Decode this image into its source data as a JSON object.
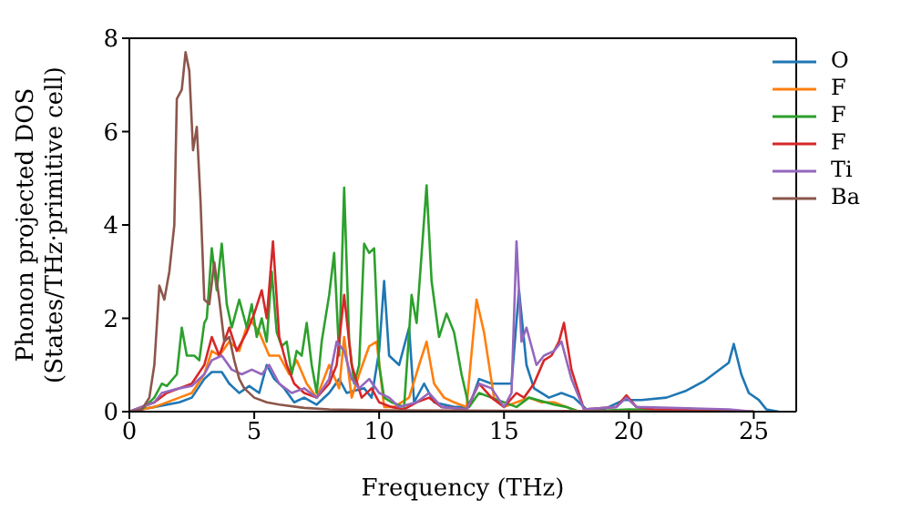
{
  "chart_data": {
    "type": "line",
    "xlabel": "Frequency (THz)",
    "ylabel": "Phonon projected DOS\n(States/THz·primitive cell)",
    "xlim": [
      0,
      26.7
    ],
    "xticks": [
      0,
      5,
      10,
      15,
      20,
      25
    ],
    "ylim": [
      0,
      8
    ],
    "yticks": [
      0,
      2,
      4,
      6,
      8
    ],
    "grid": false,
    "legend": "top right",
    "marker": "none",
    "line_style": "solid",
    "series": [
      {
        "name": "O",
        "color": "#1f77b4",
        "x": [
          0,
          1,
          2,
          2.5,
          3,
          3.3,
          3.7,
          4.0,
          4.4,
          4.8,
          5.2,
          5.5,
          5.8,
          6.2,
          6.6,
          7.0,
          7.5,
          8.0,
          8.4,
          8.7,
          9.0,
          9.4,
          9.7,
          10.0,
          10.2,
          10.4,
          10.8,
          11.2,
          11.4,
          11.8,
          12.2,
          13,
          13.6,
          14,
          14.5,
          15,
          15.3,
          15.6,
          15.9,
          16.2,
          16.8,
          17.3,
          17.8,
          18.3,
          19,
          19.8,
          20.5,
          21.5,
          22.3,
          23,
          23.5,
          24,
          24.2,
          24.5,
          24.8,
          25.2,
          25.5,
          26
        ],
        "values": [
          0,
          0.1,
          0.2,
          0.3,
          0.7,
          0.85,
          0.85,
          0.6,
          0.4,
          0.55,
          0.4,
          1.0,
          0.7,
          0.5,
          0.2,
          0.3,
          0.15,
          0.4,
          0.7,
          0.4,
          0.45,
          0.5,
          0.3,
          1.3,
          2.8,
          1.2,
          1.0,
          1.8,
          0.2,
          0.6,
          0.2,
          0.1,
          0.1,
          0.7,
          0.6,
          0.6,
          0.6,
          2.6,
          1.0,
          0.5,
          0.3,
          0.4,
          0.3,
          0.05,
          0.05,
          0.25,
          0.25,
          0.3,
          0.45,
          0.65,
          0.85,
          1.05,
          1.45,
          0.8,
          0.4,
          0.25,
          0.05,
          0
        ]
      },
      {
        "name": "F",
        "color": "#ff7f0e",
        "x": [
          0,
          1,
          2,
          2.5,
          3,
          3.3,
          3.6,
          4.0,
          4.4,
          4.8,
          5.2,
          5.6,
          6.0,
          6.4,
          6.7,
          7.1,
          7.5,
          8.0,
          8.4,
          8.6,
          8.9,
          9.2,
          9.6,
          9.9,
          10.2,
          10.6,
          11.2,
          11.6,
          11.9,
          12.2,
          12.6,
          13,
          13.5,
          13.9,
          14.2,
          14.6,
          15,
          15.5,
          16,
          16.5,
          17,
          17.5,
          18,
          25
        ],
        "values": [
          0,
          0.1,
          0.3,
          0.4,
          0.8,
          1.3,
          1.2,
          1.5,
          1.3,
          2.0,
          1.7,
          1.2,
          1.2,
          0.8,
          1.1,
          0.6,
          0.3,
          1.0,
          0.5,
          1.6,
          0.3,
          0.8,
          1.4,
          1.5,
          0.1,
          0.1,
          0.3,
          1.0,
          1.5,
          0.6,
          0.3,
          0.2,
          0.1,
          2.4,
          1.7,
          0.3,
          0.1,
          0.2,
          0.3,
          0.2,
          0.2,
          0.1,
          0,
          0
        ]
      },
      {
        "name": "F",
        "color": "#2ca02c",
        "x": [
          0,
          0.5,
          1.0,
          1.3,
          1.5,
          1.9,
          2.1,
          2.3,
          2.6,
          2.8,
          3.0,
          3.1,
          3.3,
          3.5,
          3.7,
          3.9,
          4.1,
          4.4,
          4.7,
          4.9,
          5.1,
          5.3,
          5.5,
          5.7,
          5.9,
          6.1,
          6.3,
          6.5,
          6.7,
          6.9,
          7.1,
          7.3,
          7.5,
          7.7,
          8.0,
          8.2,
          8.4,
          8.6,
          8.8,
          9.0,
          9.2,
          9.4,
          9.6,
          9.8,
          10.0,
          10.2,
          10.5,
          11,
          11.3,
          11.5,
          11.9,
          12.1,
          12.4,
          12.7,
          13.0,
          13.3,
          13.6,
          14,
          14.5,
          15,
          15.5,
          16,
          17,
          17.5,
          18,
          20,
          25
        ],
        "values": [
          0,
          0.05,
          0.3,
          0.6,
          0.55,
          0.8,
          1.8,
          1.2,
          1.2,
          1.1,
          1.9,
          2.0,
          3.5,
          2.6,
          3.6,
          2.3,
          1.8,
          2.4,
          1.8,
          2.3,
          1.6,
          2.0,
          1.5,
          3.0,
          1.7,
          1.4,
          1.5,
          0.8,
          1.3,
          1.2,
          1.9,
          1.0,
          0.4,
          1.5,
          2.5,
          3.4,
          1.2,
          4.8,
          1.5,
          0.6,
          1.0,
          3.6,
          3.4,
          3.5,
          1.0,
          0.3,
          0.2,
          0.1,
          2.5,
          1.9,
          4.85,
          2.8,
          1.6,
          2.1,
          1.7,
          0.8,
          0.1,
          0.4,
          0.3,
          0.2,
          0.1,
          0.3,
          0.15,
          0.1,
          0,
          0.05,
          0
        ]
      },
      {
        "name": "F",
        "color": "#d62728",
        "x": [
          0,
          1,
          1.5,
          2,
          2.5,
          3.0,
          3.3,
          3.6,
          4.0,
          4.3,
          4.7,
          5.0,
          5.3,
          5.5,
          5.75,
          6.0,
          6.3,
          6.6,
          7.0,
          7.5,
          8.0,
          8.3,
          8.6,
          8.9,
          9.3,
          9.7,
          10.0,
          10.5,
          11,
          11.5,
          12,
          12.5,
          13.5,
          14,
          14.5,
          15,
          15.5,
          15.8,
          16.2,
          16.6,
          16.9,
          17.2,
          17.4,
          17.7,
          18.2,
          19.5,
          19.9,
          20.3,
          21,
          25
        ],
        "values": [
          0,
          0.2,
          0.4,
          0.5,
          0.6,
          1.0,
          1.6,
          1.2,
          1.8,
          1.3,
          1.7,
          2.1,
          2.6,
          2.0,
          3.65,
          1.6,
          1.0,
          0.6,
          0.4,
          0.3,
          0.6,
          1.0,
          2.5,
          1.0,
          0.3,
          0.5,
          0.2,
          0.1,
          0.05,
          0.2,
          0.3,
          0.1,
          0.05,
          0.6,
          0.3,
          0.1,
          0.4,
          0.3,
          0.6,
          1.1,
          1.2,
          1.5,
          1.9,
          0.9,
          0.05,
          0.1,
          0.35,
          0.1,
          0.05,
          0
        ]
      },
      {
        "name": "Ti",
        "color": "#9467bd",
        "x": [
          0,
          1,
          1.3,
          2,
          2.5,
          3,
          3.3,
          3.7,
          4.1,
          4.5,
          4.9,
          5.3,
          5.6,
          6,
          6.5,
          7,
          7.5,
          8,
          8.3,
          8.6,
          8.9,
          9.2,
          9.6,
          10.0,
          10.4,
          10.8,
          11.5,
          12,
          12.5,
          13.5,
          14,
          14.5,
          15.0,
          15.3,
          15.5,
          15.7,
          15.9,
          16.3,
          16.6,
          17,
          17.3,
          17.7,
          18.2,
          19.5,
          19.9,
          20.3,
          24,
          25
        ],
        "values": [
          0,
          0.2,
          0.4,
          0.5,
          0.55,
          0.8,
          1.1,
          1.2,
          0.9,
          0.8,
          0.9,
          0.8,
          1.0,
          0.6,
          0.4,
          0.5,
          0.3,
          0.7,
          1.5,
          1.3,
          0.7,
          0.5,
          0.7,
          0.4,
          0.3,
          0.1,
          0.2,
          0.4,
          0.1,
          0.05,
          0.6,
          0.5,
          0.1,
          0.4,
          3.65,
          1.5,
          1.8,
          1.0,
          1.2,
          1.3,
          1.5,
          0.7,
          0.05,
          0.1,
          0.3,
          0.1,
          0.05,
          0
        ]
      },
      {
        "name": "Ba",
        "color": "#8c564b",
        "x": [
          0,
          0.5,
          0.8,
          1.0,
          1.2,
          1.4,
          1.6,
          1.8,
          1.9,
          2.1,
          2.25,
          2.4,
          2.55,
          2.7,
          2.85,
          3.0,
          3.2,
          3.4,
          3.6,
          3.8,
          4.0,
          4.2,
          4.4,
          4.6,
          5.0,
          5.5,
          6,
          7,
          8,
          10,
          15,
          20,
          25
        ],
        "values": [
          0,
          0.05,
          0.3,
          1.0,
          2.7,
          2.4,
          3.0,
          4.0,
          6.7,
          6.9,
          7.7,
          7.3,
          5.6,
          6.1,
          4.5,
          2.4,
          2.3,
          3.2,
          2.4,
          1.5,
          1.6,
          1.1,
          0.7,
          0.5,
          0.3,
          0.2,
          0.15,
          0.08,
          0.05,
          0.03,
          0.02,
          0.01,
          0
        ]
      }
    ]
  }
}
